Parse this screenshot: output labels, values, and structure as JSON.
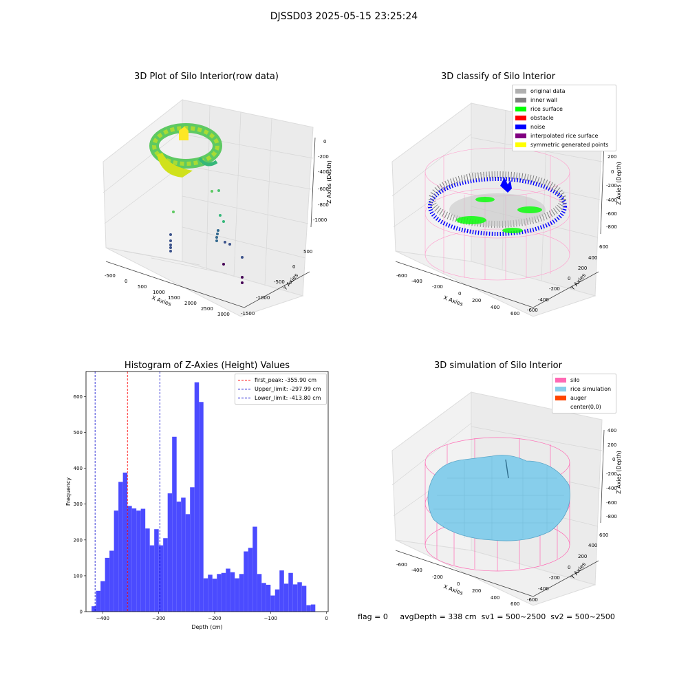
{
  "suptitle": "DJSSD03 2025-05-15 23:25:24",
  "footer": {
    "flag": "flag = 0",
    "avg_depth": "avgDepth = 338 cm",
    "sv1": "sv1 = 500~2500",
    "sv2": "sv2 = 500~2500"
  },
  "chart_data": [
    {
      "type": "scatter",
      "title": "3D Plot of Silo Interior(row data)",
      "xlabel": "X Axies",
      "ylabel": "Y Axies",
      "zlabel": "Z Axies (Depth)",
      "x_ticks": [
        "-500",
        "0",
        "500",
        "1000",
        "1500",
        "2000",
        "2500",
        "3000"
      ],
      "y_ticks": [
        "500",
        "0",
        "-500",
        "-1000",
        "-1500"
      ],
      "z_ticks": [
        "0",
        "-200",
        "-400",
        "-600",
        "-800",
        "-1000"
      ],
      "colormap": "viridis"
    },
    {
      "type": "scatter",
      "title": "3D classify of Silo Interior",
      "xlabel": "X Axies",
      "ylabel": "Y Axies",
      "zlabel": "Z Axies (Depth)",
      "x_ticks": [
        "-600",
        "-400",
        "-200",
        "0",
        "200",
        "400",
        "600"
      ],
      "y_ticks": [
        "600",
        "400",
        "200",
        "0",
        "-200",
        "-400",
        "-600"
      ],
      "z_ticks": [
        "200",
        "0",
        "-200",
        "-400",
        "-600",
        "-800"
      ],
      "legend": [
        {
          "label": "original data",
          "color": "#b0b0b0"
        },
        {
          "label": "inner wall",
          "color": "#808080"
        },
        {
          "label": "rice surface",
          "color": "#00ff00"
        },
        {
          "label": "obstacle",
          "color": "#ff0000"
        },
        {
          "label": "noise",
          "color": "#0000ff"
        },
        {
          "label": "interpolated rice surface",
          "color": "#800080"
        },
        {
          "label": "symmetric generated points",
          "color": "#ffff00"
        }
      ]
    },
    {
      "type": "bar",
      "title": "Histogram of Z-Axies (Height) Values",
      "xlabel": "Depth (cm)",
      "ylabel": "Frequency",
      "bin_start": -420,
      "bin_width": 8,
      "values": [
        15,
        58,
        85,
        150,
        170,
        282,
        362,
        388,
        295,
        288,
        282,
        287,
        232,
        185,
        230,
        185,
        205,
        330,
        488,
        307,
        318,
        272,
        347,
        640,
        585,
        93,
        103,
        92,
        105,
        108,
        120,
        110,
        93,
        105,
        168,
        178,
        237,
        105,
        80,
        75,
        45,
        62,
        115,
        78,
        108,
        76,
        82,
        72,
        18,
        20
      ],
      "xlim": [
        -430,
        3
      ],
      "ylim": [
        0,
        670
      ],
      "x_ticks": [
        -400,
        -300,
        -200,
        -100,
        0
      ],
      "y_ticks": [
        0,
        100,
        200,
        300,
        400,
        500,
        600
      ],
      "bar_color": "#4b4bff",
      "vlines": [
        {
          "label": "first_peak: -355.90 cm",
          "value": -355.9,
          "color": "#ff0000"
        },
        {
          "label": "Upper_limit: -297.99 cm",
          "value": -297.99,
          "color": "#0000cc"
        },
        {
          "label": "Lower_limit: -413.80 cm",
          "value": -413.8,
          "color": "#0000cc"
        }
      ]
    },
    {
      "type": "area",
      "title": "3D simulation of Silo Interior",
      "xlabel": "X Axies",
      "ylabel": "Y Axies",
      "zlabel": "Z Axies (Depth)",
      "x_ticks": [
        "-600",
        "-400",
        "-200",
        "0",
        "200",
        "400",
        "600"
      ],
      "y_ticks": [
        "600",
        "400",
        "200",
        "0",
        "-200",
        "-400",
        "-600"
      ],
      "z_ticks": [
        "400",
        "200",
        "0",
        "-200",
        "-400",
        "-600",
        "-800"
      ],
      "legend": [
        {
          "label": "silo",
          "color": "#ff69b4"
        },
        {
          "label": "rice simulation",
          "color": "#87ceeb"
        },
        {
          "label": "auger",
          "color": "#ff4500"
        },
        {
          "label": "center(0,0)",
          "color": "#ffffff"
        }
      ]
    }
  ]
}
